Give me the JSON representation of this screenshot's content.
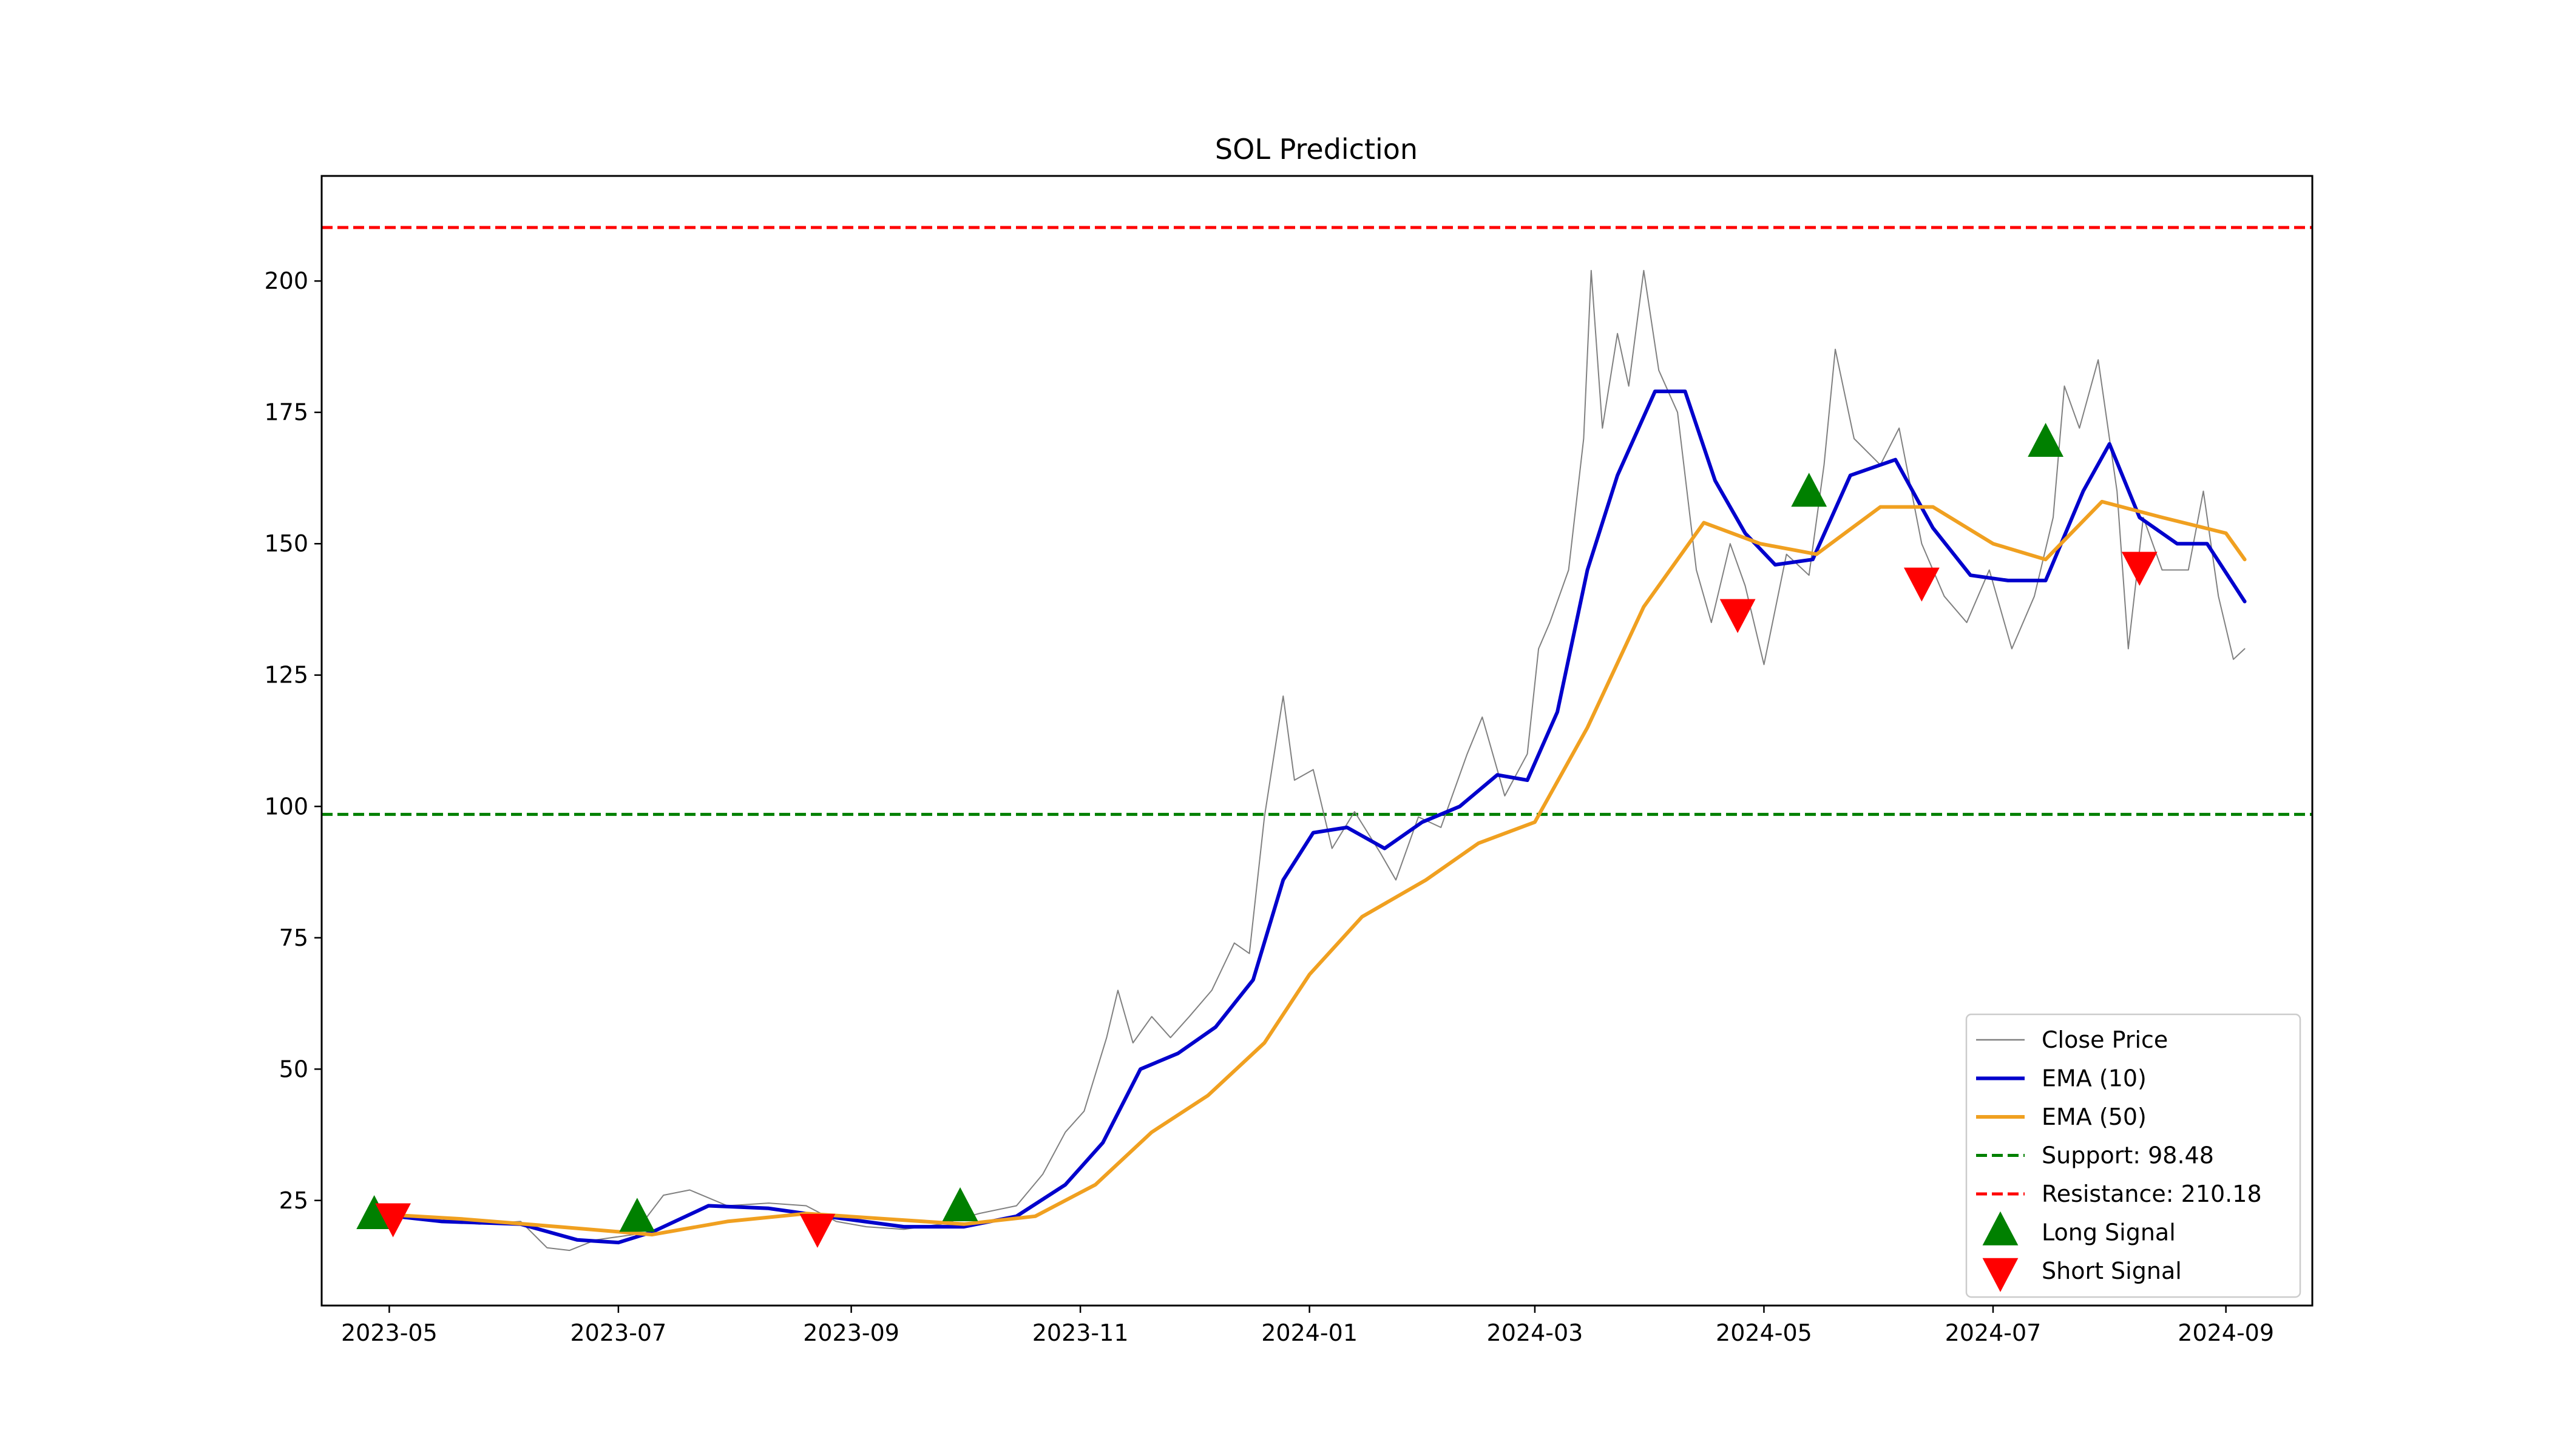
{
  "chart_data": {
    "type": "line",
    "title": "SOL Prediction",
    "xlabel": "",
    "ylabel": "",
    "x_range": [
      "2023-04-13",
      "2024-09-24"
    ],
    "ylim": [
      5,
      220
    ],
    "grid": false,
    "legend_placement": "lower-right",
    "x_ticks": [
      "2023-05",
      "2023-07",
      "2023-09",
      "2023-11",
      "2024-01",
      "2024-03",
      "2024-05",
      "2024-07",
      "2024-09"
    ],
    "y_ticks": [
      25,
      50,
      75,
      100,
      125,
      150,
      175,
      200
    ],
    "series": [
      {
        "name": "Close Price",
        "color": "#808080",
        "style": "thin",
        "points": [
          [
            "2023-04-26",
            22.5
          ],
          [
            "2023-05-04",
            22.0
          ],
          [
            "2023-05-15",
            21.2
          ],
          [
            "2023-05-25",
            20.5
          ],
          [
            "2023-06-05",
            21.0
          ],
          [
            "2023-06-12",
            16.0
          ],
          [
            "2023-06-18",
            15.5
          ],
          [
            "2023-06-25",
            17.5
          ],
          [
            "2023-07-05",
            18.5
          ],
          [
            "2023-07-13",
            26.0
          ],
          [
            "2023-07-20",
            27.0
          ],
          [
            "2023-07-30",
            24.0
          ],
          [
            "2023-08-10",
            24.5
          ],
          [
            "2023-08-20",
            24.0
          ],
          [
            "2023-08-28",
            21.0
          ],
          [
            "2023-09-05",
            20.0
          ],
          [
            "2023-09-15",
            19.5
          ],
          [
            "2023-09-25",
            20.5
          ],
          [
            "2023-10-05",
            22.5
          ],
          [
            "2023-10-15",
            24.0
          ],
          [
            "2023-10-22",
            30.0
          ],
          [
            "2023-10-28",
            38.0
          ],
          [
            "2023-11-02",
            42.0
          ],
          [
            "2023-11-08",
            56.0
          ],
          [
            "2023-11-11",
            65.0
          ],
          [
            "2023-11-15",
            55.0
          ],
          [
            "2023-11-20",
            60.0
          ],
          [
            "2023-11-25",
            56.0
          ],
          [
            "2023-11-30",
            60.0
          ],
          [
            "2023-12-06",
            65.0
          ],
          [
            "2023-12-12",
            74.0
          ],
          [
            "2023-12-16",
            72.0
          ],
          [
            "2023-12-20",
            98.0
          ],
          [
            "2023-12-25",
            121.0
          ],
          [
            "2023-12-28",
            105.0
          ],
          [
            "2024-01-02",
            107.0
          ],
          [
            "2024-01-07",
            92.0
          ],
          [
            "2024-01-13",
            99.0
          ],
          [
            "2024-01-20",
            91.0
          ],
          [
            "2024-01-24",
            86.0
          ],
          [
            "2024-01-30",
            98.0
          ],
          [
            "2024-02-05",
            96.0
          ],
          [
            "2024-02-12",
            110.0
          ],
          [
            "2024-02-16",
            117.0
          ],
          [
            "2024-02-22",
            102.0
          ],
          [
            "2024-02-28",
            110.0
          ],
          [
            "2024-03-02",
            130.0
          ],
          [
            "2024-03-05",
            135.0
          ],
          [
            "2024-03-10",
            145.0
          ],
          [
            "2024-03-14",
            170.0
          ],
          [
            "2024-03-16",
            202.0
          ],
          [
            "2024-03-19",
            172.0
          ],
          [
            "2024-03-23",
            190.0
          ],
          [
            "2024-03-26",
            180.0
          ],
          [
            "2024-03-30",
            202.0
          ],
          [
            "2024-04-03",
            183.0
          ],
          [
            "2024-04-08",
            175.0
          ],
          [
            "2024-04-13",
            145.0
          ],
          [
            "2024-04-17",
            135.0
          ],
          [
            "2024-04-22",
            150.0
          ],
          [
            "2024-04-26",
            142.0
          ],
          [
            "2024-05-01",
            127.0
          ],
          [
            "2024-05-07",
            148.0
          ],
          [
            "2024-05-13",
            144.0
          ],
          [
            "2024-05-17",
            165.0
          ],
          [
            "2024-05-20",
            187.0
          ],
          [
            "2024-05-25",
            170.0
          ],
          [
            "2024-06-01",
            165.0
          ],
          [
            "2024-06-06",
            172.0
          ],
          [
            "2024-06-12",
            150.0
          ],
          [
            "2024-06-18",
            140.0
          ],
          [
            "2024-06-24",
            135.0
          ],
          [
            "2024-06-30",
            145.0
          ],
          [
            "2024-07-06",
            130.0
          ],
          [
            "2024-07-12",
            140.0
          ],
          [
            "2024-07-17",
            155.0
          ],
          [
            "2024-07-20",
            180.0
          ],
          [
            "2024-07-24",
            172.0
          ],
          [
            "2024-07-29",
            185.0
          ],
          [
            "2024-08-03",
            160.0
          ],
          [
            "2024-08-06",
            130.0
          ],
          [
            "2024-08-10",
            155.0
          ],
          [
            "2024-08-15",
            145.0
          ],
          [
            "2024-08-22",
            145.0
          ],
          [
            "2024-08-26",
            160.0
          ],
          [
            "2024-08-30",
            140.0
          ],
          [
            "2024-09-03",
            128.0
          ],
          [
            "2024-09-06",
            130.0
          ]
        ]
      },
      {
        "name": "EMA (10)",
        "color": "#0000cc",
        "style": "bold",
        "points": [
          [
            "2023-04-26",
            22.5
          ],
          [
            "2023-05-15",
            21.0
          ],
          [
            "2023-06-05",
            20.5
          ],
          [
            "2023-06-20",
            17.5
          ],
          [
            "2023-07-01",
            17.0
          ],
          [
            "2023-07-10",
            19.0
          ],
          [
            "2023-07-25",
            24.0
          ],
          [
            "2023-08-10",
            23.5
          ],
          [
            "2023-08-25",
            22.0
          ],
          [
            "2023-09-15",
            20.0
          ],
          [
            "2023-10-01",
            20.0
          ],
          [
            "2023-10-15",
            22.0
          ],
          [
            "2023-10-28",
            28.0
          ],
          [
            "2023-11-07",
            36.0
          ],
          [
            "2023-11-17",
            50.0
          ],
          [
            "2023-11-27",
            53.0
          ],
          [
            "2023-12-07",
            58.0
          ],
          [
            "2023-12-17",
            67.0
          ],
          [
            "2023-12-25",
            86.0
          ],
          [
            "2024-01-02",
            95.0
          ],
          [
            "2024-01-11",
            96.0
          ],
          [
            "2024-01-21",
            92.0
          ],
          [
            "2024-01-31",
            97.0
          ],
          [
            "2024-02-10",
            100.0
          ],
          [
            "2024-02-20",
            106.0
          ],
          [
            "2024-02-28",
            105.0
          ],
          [
            "2024-03-07",
            118.0
          ],
          [
            "2024-03-15",
            145.0
          ],
          [
            "2024-03-23",
            163.0
          ],
          [
            "2024-04-02",
            179.0
          ],
          [
            "2024-04-10",
            179.0
          ],
          [
            "2024-04-18",
            162.0
          ],
          [
            "2024-04-26",
            152.0
          ],
          [
            "2024-05-04",
            146.0
          ],
          [
            "2024-05-14",
            147.0
          ],
          [
            "2024-05-24",
            163.0
          ],
          [
            "2024-06-05",
            166.0
          ],
          [
            "2024-06-15",
            153.0
          ],
          [
            "2024-06-25",
            144.0
          ],
          [
            "2024-07-05",
            143.0
          ],
          [
            "2024-07-15",
            143.0
          ],
          [
            "2024-07-25",
            160.0
          ],
          [
            "2024-08-01",
            169.0
          ],
          [
            "2024-08-09",
            155.0
          ],
          [
            "2024-08-19",
            150.0
          ],
          [
            "2024-08-27",
            150.0
          ],
          [
            "2024-09-06",
            139.0
          ]
        ]
      },
      {
        "name": "EMA (50)",
        "color": "#f0a020",
        "style": "bold",
        "points": [
          [
            "2023-04-26",
            22.5
          ],
          [
            "2023-05-20",
            21.5
          ],
          [
            "2023-06-15",
            20.0
          ],
          [
            "2023-07-10",
            18.5
          ],
          [
            "2023-07-30",
            21.0
          ],
          [
            "2023-08-20",
            22.5
          ],
          [
            "2023-09-10",
            21.5
          ],
          [
            "2023-10-01",
            20.5
          ],
          [
            "2023-10-20",
            22.0
          ],
          [
            "2023-11-05",
            28.0
          ],
          [
            "2023-11-20",
            38.0
          ],
          [
            "2023-12-05",
            45.0
          ],
          [
            "2023-12-20",
            55.0
          ],
          [
            "2024-01-01",
            68.0
          ],
          [
            "2024-01-15",
            79.0
          ],
          [
            "2024-02-01",
            86.0
          ],
          [
            "2024-02-15",
            93.0
          ],
          [
            "2024-03-01",
            97.0
          ],
          [
            "2024-03-15",
            115.0
          ],
          [
            "2024-03-30",
            138.0
          ],
          [
            "2024-04-15",
            154.0
          ],
          [
            "2024-04-30",
            150.0
          ],
          [
            "2024-05-15",
            148.0
          ],
          [
            "2024-06-01",
            157.0
          ],
          [
            "2024-06-15",
            157.0
          ],
          [
            "2024-07-01",
            150.0
          ],
          [
            "2024-07-15",
            147.0
          ],
          [
            "2024-07-30",
            158.0
          ],
          [
            "2024-08-15",
            155.0
          ],
          [
            "2024-09-01",
            152.0
          ],
          [
            "2024-09-06",
            147.0
          ]
        ]
      }
    ],
    "reference_lines": [
      {
        "name": "Support: 98.48",
        "value": 98.48,
        "color": "#008000",
        "style": "dashed"
      },
      {
        "name": "Resistance: 210.18",
        "value": 210.18,
        "color": "#ff0000",
        "style": "dashed"
      }
    ],
    "markers": [
      {
        "name": "Long Signal",
        "shape": "triangle-up",
        "color": "#008000",
        "points": [
          [
            "2023-04-27",
            22.0
          ],
          [
            "2023-07-06",
            21.5
          ],
          [
            "2023-09-30",
            23.5
          ],
          [
            "2024-05-13",
            159.5
          ],
          [
            "2024-07-15",
            169.0
          ]
        ]
      },
      {
        "name": "Short Signal",
        "shape": "triangle-down",
        "color": "#ff0000",
        "points": [
          [
            "2023-05-02",
            22.0
          ],
          [
            "2023-08-23",
            20.0
          ],
          [
            "2024-04-24",
            137.0
          ],
          [
            "2024-06-12",
            143.0
          ],
          [
            "2024-08-09",
            146.0
          ]
        ]
      }
    ],
    "legend": [
      "Close Price",
      "EMA (10)",
      "EMA (50)",
      "Support: 98.48",
      "Resistance: 210.18",
      "Long Signal",
      "Short Signal"
    ]
  }
}
